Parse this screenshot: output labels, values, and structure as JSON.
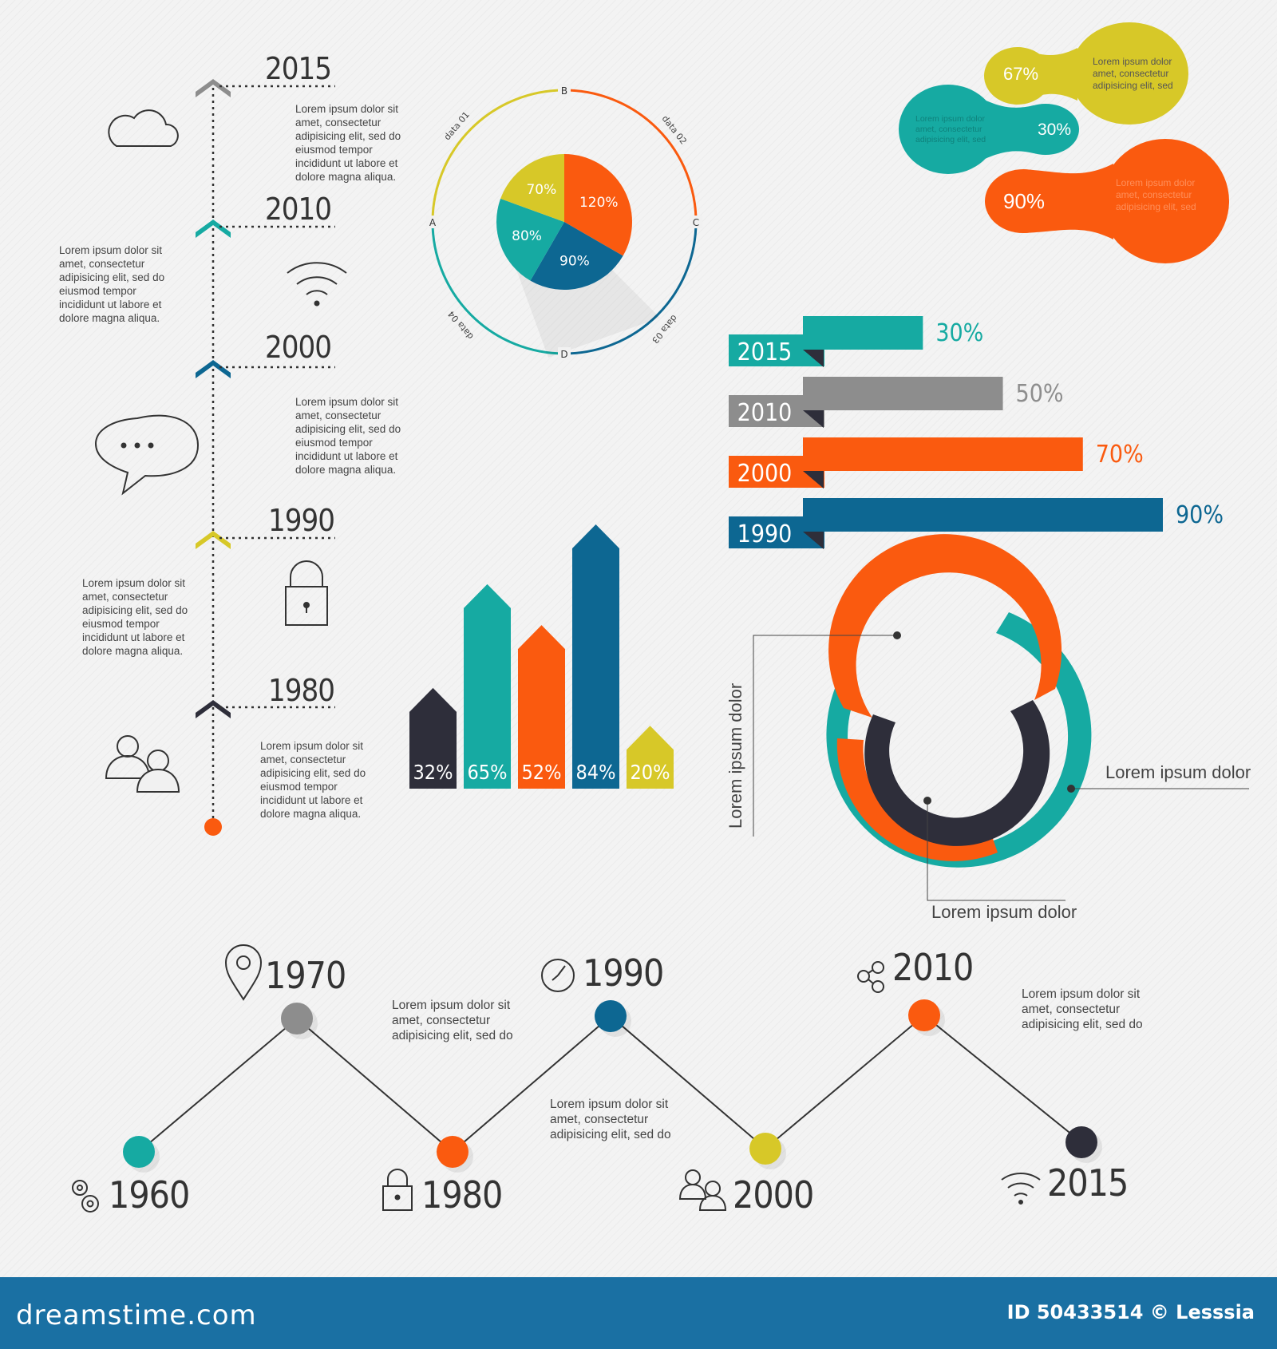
{
  "colors": {
    "teal": "#16aaa2",
    "gray": "#8d8d8d",
    "orange": "#fa5a0f",
    "navy": "#0d6792",
    "yellow": "#d7c828",
    "dark": "#2e2e3a"
  },
  "vertical_timeline": {
    "items": [
      {
        "year": "2015",
        "color": "#8d8d8d",
        "icon": "cloud-icon"
      },
      {
        "year": "2010",
        "color": "#16aaa2",
        "icon": "wifi-icon"
      },
      {
        "year": "2000",
        "color": "#0d6792",
        "icon": "chat-bubble-icon"
      },
      {
        "year": "1990",
        "color": "#d7c828",
        "icon": "padlock-icon"
      },
      {
        "year": "1980",
        "color": "#2e2e3a",
        "icon": "users-icon"
      }
    ],
    "texts": [
      "Lorem ipsum dolor sit\namet, consectetur\nadipisicing elit, sed do\neiusmod tempor\nincididunt ut labore et\ndolore magna aliqua.",
      "Lorem ipsum dolor sit\namet, consectetur\nadipisicing elit, sed do\neiusmod tempor\nincididunt ut labore et\ndolore magna aliqua.",
      "Lorem ipsum dolor sit\namet, consectetur\nadipisicing elit, sed do\neiusmod tempor\nincididunt ut labore et\ndolore magna aliqua.",
      "Lorem ipsum dolor sit\namet, consectetur\nadipisicing elit, sed do\neiusmod tempor\nincididunt ut labore et\ndolore magna aliqua.",
      "Lorem ipsum dolor sit\namet, consectetur\nadipisicing elit, sed do\neiusmod tempor\nincididunt ut labore et\ndolore magna aliqua."
    ]
  },
  "chart_data": [
    {
      "type": "pie",
      "title": "",
      "slices": [
        {
          "label": "120%",
          "value": 120,
          "color": "#fa5a0f"
        },
        {
          "label": "90%",
          "value": 90,
          "color": "#0d6792"
        },
        {
          "label": "80%",
          "value": 80,
          "color": "#16aaa2"
        },
        {
          "label": "70%",
          "value": 70,
          "color": "#d7c828"
        }
      ],
      "ring_markers": [
        "A",
        "B",
        "C",
        "D"
      ],
      "ring_labels": [
        "data 01",
        "data 02",
        "data 03",
        "data 04"
      ]
    },
    {
      "type": "bar",
      "orientation": "horizontal",
      "categories": [
        "2015",
        "2010",
        "2000",
        "1990"
      ],
      "values": [
        30,
        50,
        70,
        90
      ],
      "labels": [
        "30%",
        "50%",
        "70%",
        "90%"
      ],
      "colors": [
        "#16aaa2",
        "#8d8d8d",
        "#fa5a0f",
        "#0d6792"
      ],
      "xlim": [
        0,
        100
      ]
    },
    {
      "type": "bar",
      "orientation": "vertical",
      "values": [
        32,
        65,
        52,
        84,
        20
      ],
      "labels": [
        "32%",
        "65%",
        "52%",
        "84%",
        "20%"
      ],
      "colors": [
        "#2e2e3a",
        "#16aaa2",
        "#fa5a0f",
        "#0d6792",
        "#d7c828"
      ],
      "ylim": [
        0,
        100
      ]
    },
    {
      "type": "line",
      "categories": [
        "1960",
        "1970",
        "1980",
        "1990",
        "2000",
        "2010",
        "2015"
      ],
      "levels": [
        "low",
        "high",
        "low",
        "high",
        "low",
        "high",
        "low"
      ],
      "colors": [
        "#16aaa2",
        "#8d8d8d",
        "#fa5a0f",
        "#0d6792",
        "#d7c828",
        "#fa5a0f",
        "#2e2e3a"
      ],
      "icons": [
        "gears-icon",
        "map-pin-icon",
        "padlock-icon",
        "clock-icon",
        "users-icon",
        "share-icon",
        "wifi-icon"
      ]
    }
  ],
  "bubbles": [
    {
      "value": "67%",
      "text": "Lorem ipsum dolor\namet, consectetur\nadipisicing elit, sed",
      "color": "#d7c828"
    },
    {
      "value": "30%",
      "text": "Lorem ipsum dolor\namet, consectetur\nadipisicing elit, sed",
      "color": "#16aaa2"
    },
    {
      "value": "90%",
      "text": "Lorem ipsum dolor\namet, consectetur\nadipisicing elit, sed",
      "color": "#fa5a0f"
    }
  ],
  "rings": {
    "label_left": "Lorem ipsum dolor",
    "label_right": "Lorem ipsum dolor",
    "label_bottom": "Lorem ipsum dolor"
  },
  "zigzag_texts": [
    "Lorem ipsum dolor sit\namet, consectetur\nadipisicing elit, sed do",
    "Lorem ipsum dolor sit\namet, consectetur\nadipisicing elit, sed do",
    "Lorem ipsum dolor sit\namet, consectetur\nadipisicing elit, sed do"
  ],
  "footer": {
    "brand": "dreamstime.com",
    "credit": "ID 50433514 © Lesssia"
  }
}
